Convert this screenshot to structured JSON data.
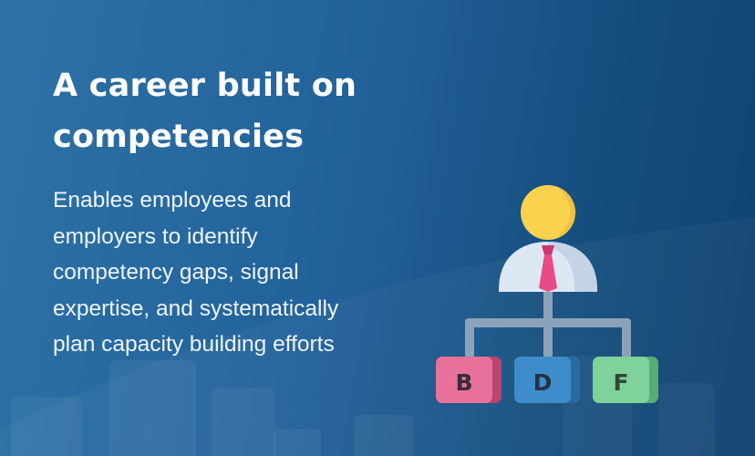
{
  "headline": {
    "line1": "A career built on",
    "line2": "competencies"
  },
  "description": {
    "line1": "Enables employees and",
    "line2": "employers to identify",
    "line3": "competency gaps, signal",
    "line4": "expertise, and systematically",
    "line5": "plan capacity building efforts"
  },
  "org_chart": {
    "boxes": [
      {
        "letter": "B",
        "color": "#e8719b"
      },
      {
        "letter": "D",
        "color": "#3f8ccb"
      },
      {
        "letter": "F",
        "color": "#7fd29a"
      }
    ]
  },
  "colors": {
    "background_start": "#2d72a6",
    "background_end": "#0f4270",
    "tie": "#e94b86",
    "head": "#fbd24d",
    "shirt": "#dce8f4",
    "connector": "#8aa3b8"
  }
}
